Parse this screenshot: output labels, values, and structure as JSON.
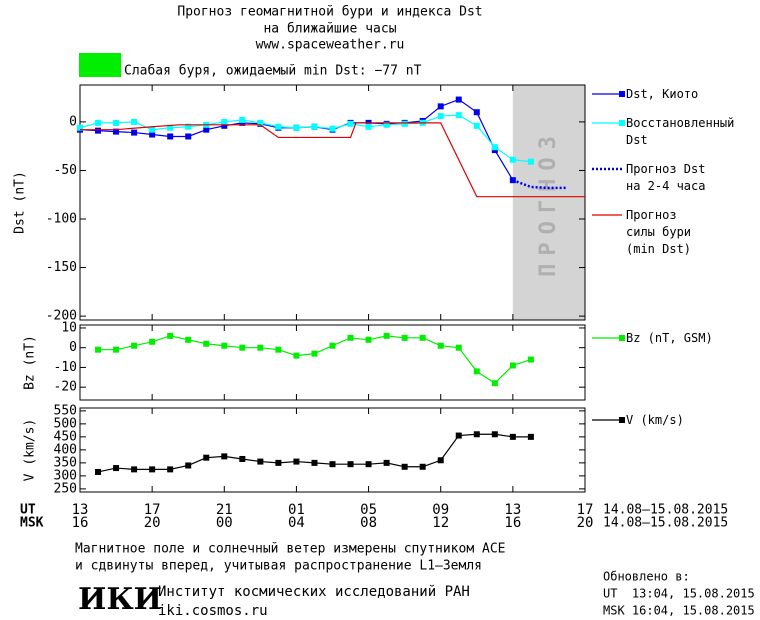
{
  "header": {
    "title": "Прогноз геомагнитной бури и индекса Dst",
    "subtitle": "на ближайшие часы",
    "url": "www.spaceweather.ru",
    "status_color": "#00ee00",
    "status": "Слабая буря, ожидаемый min Dst: −77 nT"
  },
  "chart_data": [
    {
      "type": "line",
      "ylabel": "Dst (nT)",
      "xlim": [
        0,
        28
      ],
      "ylim": [
        -204,
        38
      ],
      "yticks": [
        0,
        -50,
        -100,
        -150,
        -200
      ],
      "shade": {
        "xlim": [
          24,
          28
        ],
        "label": "ПРОГНОЗ",
        "color": "#d4d4d4"
      },
      "series": [
        {
          "name": "Dst, Киото",
          "color": "#0000ee",
          "marker": "square",
          "x": [
            0,
            1,
            2,
            3,
            4,
            5,
            6,
            7,
            8,
            9,
            10,
            11,
            12,
            13,
            14,
            15,
            16,
            17,
            18,
            19,
            20,
            21,
            22,
            23,
            24
          ],
          "values": [
            -8,
            -9,
            -10,
            -11,
            -13,
            -15,
            -15,
            -8,
            -4,
            -1,
            -2,
            -6,
            -6,
            -5,
            -8,
            -1,
            -1,
            -2,
            -1,
            1,
            16,
            23,
            10,
            -29,
            -60
          ]
        },
        {
          "name": "Восстановленный\nDst",
          "color": "#00ffff",
          "marker": "square",
          "x": [
            0,
            1,
            2,
            3,
            4,
            5,
            6,
            7,
            8,
            9,
            10,
            11,
            12,
            13,
            14,
            15,
            16,
            17,
            18,
            19,
            20,
            21,
            22,
            23,
            24,
            25
          ],
          "values": [
            -6,
            -1,
            -1,
            0,
            -8,
            -6,
            -5,
            -3,
            0,
            2,
            -1,
            -5,
            -6,
            -5,
            -7,
            -2,
            -5,
            -3,
            -2,
            -1,
            6,
            7,
            -4,
            -26,
            -39,
            -41
          ]
        },
        {
          "name": "Прогноз Dst\nна 2-4 часа",
          "color": "#0000ee",
          "dash": "dotted",
          "x": [
            24,
            25,
            26,
            27
          ],
          "values": [
            -60,
            -67,
            -68,
            -68
          ]
        },
        {
          "name": "Прогноз\nсилы бури\n(min Dst)",
          "color": "#dd0000",
          "x": [
            0,
            2,
            4,
            5.5,
            10,
            11,
            15,
            15.3,
            20,
            22,
            28
          ],
          "values": [
            -8,
            -8,
            -5,
            -3,
            -3,
            -16,
            -16,
            -1,
            -1,
            -77,
            -77
          ]
        }
      ]
    },
    {
      "type": "line",
      "ylabel": "Bz (nT)",
      "xlim": [
        0,
        28
      ],
      "ylim": [
        -26.5,
        11.5
      ],
      "yticks": [
        10,
        0,
        -10,
        -20
      ],
      "series": [
        {
          "name": "Bz (nT, GSM)",
          "color": "#00ee00",
          "marker": "square",
          "x": [
            1,
            2,
            3,
            4,
            5,
            6,
            7,
            8,
            9,
            10,
            11,
            12,
            13,
            14,
            15,
            16,
            17,
            18,
            19,
            20,
            21,
            22,
            23,
            24,
            25
          ],
          "values": [
            -1,
            -1,
            1,
            3,
            6,
            4,
            2,
            1,
            0,
            0,
            -1,
            -4,
            -3,
            1,
            5,
            4,
            6,
            5,
            5,
            1,
            0,
            -12,
            -18,
            -9,
            -6
          ]
        }
      ]
    },
    {
      "type": "line",
      "ylabel": "V (km/s)",
      "xlim": [
        0,
        28
      ],
      "ylim": [
        238,
        561
      ],
      "yticks": [
        550,
        500,
        450,
        400,
        350,
        300,
        250
      ],
      "xlabel": "UT",
      "x2label": "MSK",
      "xrange": "14.08–15.08.2015",
      "x2range": "14.08–15.08.2015",
      "xticks": [
        {
          "value": 0,
          "label": "13"
        },
        {
          "value": 4,
          "label": "17"
        },
        {
          "value": 8,
          "label": "21"
        },
        {
          "value": 12,
          "label": "01"
        },
        {
          "value": 16,
          "label": "05"
        },
        {
          "value": 20,
          "label": "09"
        },
        {
          "value": 24,
          "label": "13"
        },
        {
          "value": 28,
          "label": "17"
        }
      ],
      "x2ticks": [
        {
          "value": 0,
          "label": "16"
        },
        {
          "value": 4,
          "label": "20"
        },
        {
          "value": 8,
          "label": "00"
        },
        {
          "value": 12,
          "label": "04"
        },
        {
          "value": 16,
          "label": "08"
        },
        {
          "value": 20,
          "label": "12"
        },
        {
          "value": 24,
          "label": "16"
        },
        {
          "value": 28,
          "label": "20"
        }
      ],
      "series": [
        {
          "name": "V (km/s)",
          "color": "#000000",
          "marker": "square",
          "x": [
            1,
            2,
            3,
            4,
            5,
            6,
            7,
            8,
            9,
            10,
            11,
            12,
            13,
            14,
            15,
            16,
            17,
            18,
            19,
            20,
            21,
            22,
            23,
            24,
            25
          ],
          "values": [
            315,
            330,
            325,
            325,
            325,
            340,
            370,
            375,
            365,
            355,
            350,
            355,
            350,
            345,
            345,
            345,
            350,
            335,
            335,
            360,
            455,
            460,
            460,
            450,
            450
          ]
        }
      ]
    }
  ],
  "footer": {
    "note_line1": "Магнитное поле и солнечный ветер измерены спутником ACE",
    "note_line2": "и сдвинуты вперед, учитывая распространение L1–Земля",
    "logo": "ИКИ",
    "institute": "Институт космических исследований РАН",
    "site": "iki.cosmos.ru",
    "updated": "Обновлено в:",
    "updated_ut": "UT  13:04, 15.08.2015",
    "updated_msk": "MSK 16:04, 15.08.2015"
  }
}
